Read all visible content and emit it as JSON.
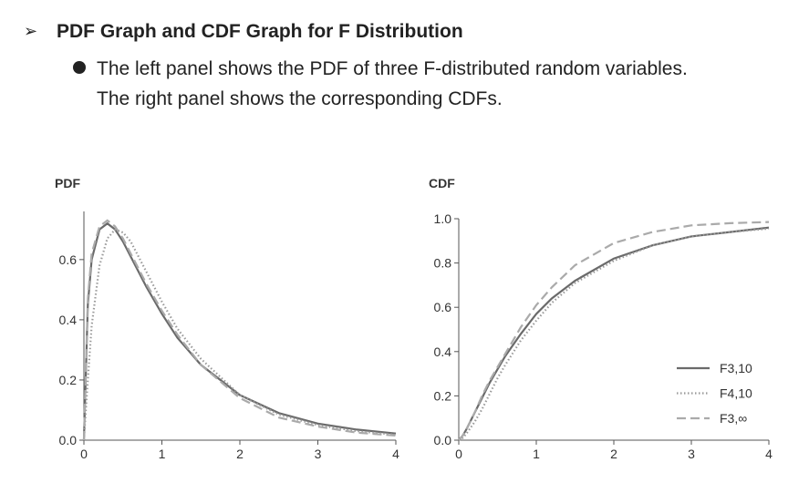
{
  "header": {
    "title": "PDF Graph and CDF Graph for F Distribution",
    "bullet": [
      "The left panel shows the PDF of three F-distributed random variables.",
      "The right panel shows the corresponding CDFs."
    ]
  },
  "chart_data": [
    {
      "type": "line",
      "title": "PDF",
      "x": [
        0,
        0.05,
        0.1,
        0.2,
        0.3,
        0.4,
        0.5,
        0.6,
        0.8,
        1.0,
        1.2,
        1.5,
        2,
        2.5,
        3,
        3.5,
        4
      ],
      "series": [
        {
          "color": "#6a6a6a",
          "style": "solid",
          "values": [
            0,
            0.45,
            0.6,
            0.7,
            0.72,
            0.7,
            0.66,
            0.61,
            0.51,
            0.42,
            0.34,
            0.25,
            0.15,
            0.09,
            0.055,
            0.035,
            0.022
          ]
        },
        {
          "color": "#9a9a9a",
          "style": "dotted",
          "values": [
            0,
            0.2,
            0.38,
            0.58,
            0.67,
            0.7,
            0.69,
            0.66,
            0.56,
            0.46,
            0.37,
            0.27,
            0.15,
            0.085,
            0.05,
            0.03,
            0.018
          ]
        },
        {
          "color": "#aaaaaa",
          "style": "dashed",
          "values": [
            0,
            0.47,
            0.62,
            0.71,
            0.73,
            0.71,
            0.67,
            0.62,
            0.52,
            0.43,
            0.35,
            0.25,
            0.14,
            0.075,
            0.045,
            0.025,
            0.015
          ]
        }
      ],
      "xlim": [
        0,
        4
      ],
      "xticks": [
        0,
        1,
        2,
        3,
        4
      ],
      "ylim": [
        0,
        0.76
      ],
      "yticks": [
        {
          "value": 0,
          "label": "0.0"
        },
        0.2,
        0.4,
        0.6
      ]
    },
    {
      "type": "line",
      "title": "CDF",
      "x": [
        0,
        0.05,
        0.1,
        0.2,
        0.3,
        0.4,
        0.5,
        0.6,
        0.8,
        1.0,
        1.2,
        1.5,
        2,
        2.5,
        3,
        3.5,
        4
      ],
      "series": [
        {
          "name": "F3,10",
          "color": "#6a6a6a",
          "style": "solid",
          "values": [
            0,
            0.02,
            0.05,
            0.12,
            0.19,
            0.26,
            0.32,
            0.38,
            0.48,
            0.57,
            0.64,
            0.72,
            0.82,
            0.88,
            0.92,
            0.94,
            0.96
          ]
        },
        {
          "name": "F4,10",
          "color": "#9a9a9a",
          "style": "dotted",
          "values": [
            0,
            0.01,
            0.03,
            0.08,
            0.14,
            0.21,
            0.28,
            0.34,
            0.45,
            0.54,
            0.62,
            0.71,
            0.81,
            0.88,
            0.92,
            0.94,
            0.955
          ]
        },
        {
          "name": "F3,∞",
          "color": "#aaaaaa",
          "style": "dashed",
          "values": [
            0,
            0.02,
            0.05,
            0.12,
            0.2,
            0.27,
            0.33,
            0.39,
            0.51,
            0.61,
            0.69,
            0.79,
            0.89,
            0.94,
            0.97,
            0.98,
            0.985
          ]
        }
      ],
      "xlim": [
        0,
        4
      ],
      "xticks": [
        0,
        1,
        2,
        3,
        4
      ],
      "ylim": [
        0,
        1.0
      ],
      "yticks": [
        {
          "value": 0,
          "label": "0.0"
        },
        0.2,
        0.4,
        0.6,
        0.8,
        {
          "value": 1.0,
          "label": "1.0"
        }
      ],
      "legend": "lower right"
    }
  ]
}
